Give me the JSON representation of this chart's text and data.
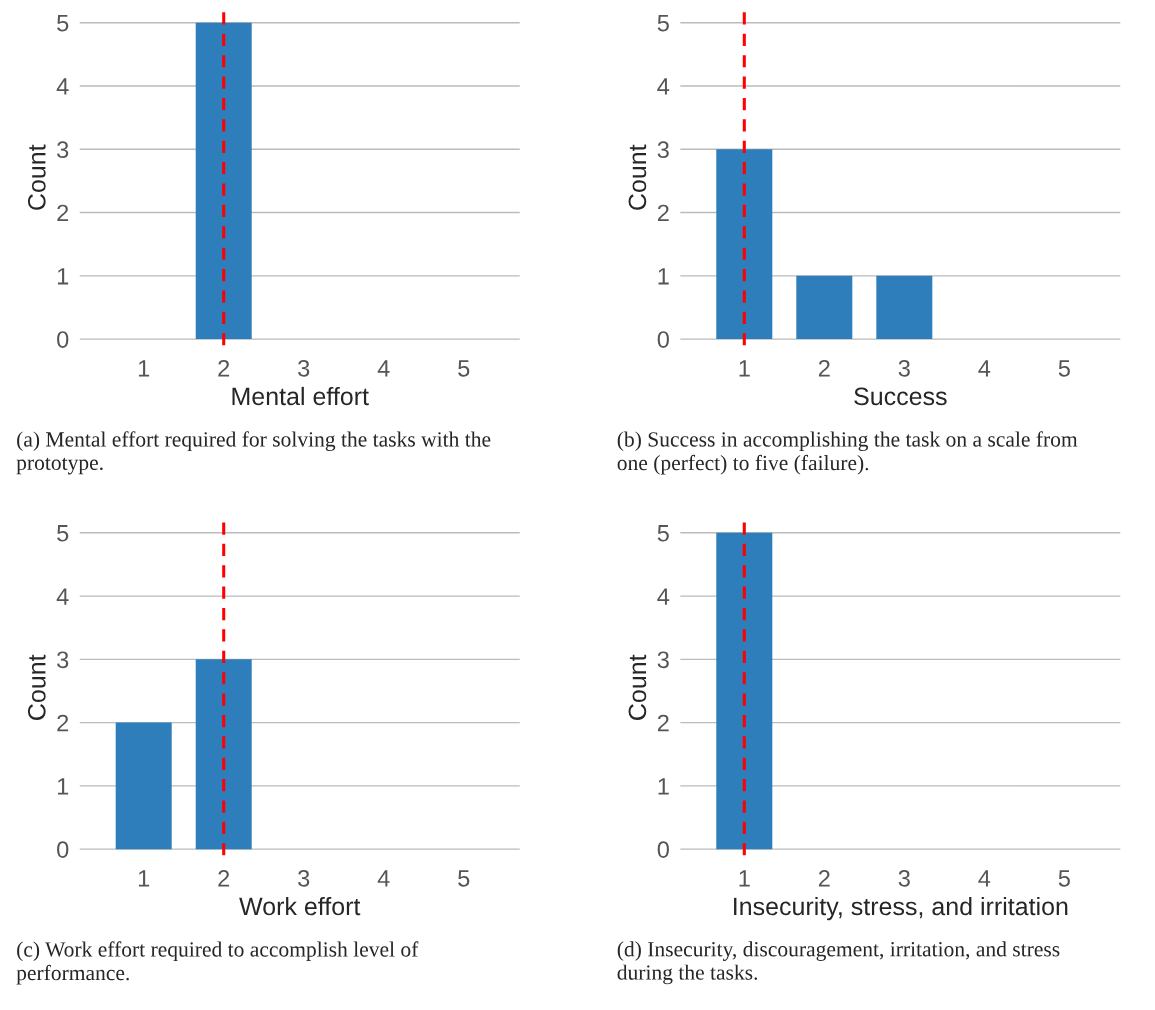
{
  "chart_data": [
    {
      "type": "bar",
      "xlabel": "Mental effort",
      "ylabel": "Count",
      "x": [
        1,
        2,
        3,
        4,
        5
      ],
      "values": [
        0,
        5,
        0,
        0,
        0
      ],
      "color": "#2e7ebc",
      "xlim": [
        0.2,
        5.7
      ],
      "ylim": [
        -0.1,
        5.2
      ],
      "xticks": [
        1,
        2,
        3,
        4,
        5
      ],
      "yticks": [
        0,
        1,
        2,
        3,
        4,
        5
      ],
      "grid": "y",
      "ref_lines": [
        {
          "axis": "x",
          "value": 2,
          "color": "#ff0000",
          "line_style": "dashed"
        }
      ],
      "annotations": [
        "(a) Mental effort required for solving the tasks with the prototype."
      ]
    },
    {
      "type": "bar",
      "xlabel": "Success",
      "ylabel": "Count",
      "x": [
        1,
        2,
        3,
        4,
        5
      ],
      "values": [
        3,
        1,
        1,
        0,
        0
      ],
      "color": "#2e7ebc",
      "xlim": [
        0.2,
        5.7
      ],
      "ylim": [
        -0.1,
        5.2
      ],
      "xticks": [
        1,
        2,
        3,
        4,
        5
      ],
      "yticks": [
        0,
        1,
        2,
        3,
        4,
        5
      ],
      "grid": "y",
      "ref_lines": [
        {
          "axis": "x",
          "value": 1,
          "color": "#ff0000",
          "line_style": "dashed"
        }
      ],
      "annotations": [
        "(b) Success in accomplishing the task on a scale from one (perfect) to five (failure)."
      ]
    },
    {
      "type": "bar",
      "xlabel": "Work effort",
      "ylabel": "Count",
      "x": [
        1,
        2,
        3,
        4,
        5
      ],
      "values": [
        2,
        3,
        0,
        0,
        0
      ],
      "color": "#2e7ebc",
      "xlim": [
        0.2,
        5.7
      ],
      "ylim": [
        -0.1,
        5.2
      ],
      "xticks": [
        1,
        2,
        3,
        4,
        5
      ],
      "yticks": [
        0,
        1,
        2,
        3,
        4,
        5
      ],
      "grid": "y",
      "ref_lines": [
        {
          "axis": "x",
          "value": 2,
          "color": "#ff0000",
          "line_style": "dashed"
        }
      ],
      "annotations": [
        "(c) Work effort required to accomplish level of performance."
      ]
    },
    {
      "type": "bar",
      "xlabel": "Insecurity, stress, and irritation",
      "ylabel": "Count",
      "x": [
        1,
        2,
        3,
        4,
        5
      ],
      "values": [
        5,
        0,
        0,
        0,
        0
      ],
      "color": "#2e7ebc",
      "xlim": [
        0.2,
        5.7
      ],
      "ylim": [
        -0.1,
        5.2
      ],
      "xticks": [
        1,
        2,
        3,
        4,
        5
      ],
      "yticks": [
        0,
        1,
        2,
        3,
        4,
        5
      ],
      "grid": "y",
      "ref_lines": [
        {
          "axis": "x",
          "value": 1,
          "color": "#ff0000",
          "line_style": "dashed"
        }
      ],
      "annotations": [
        "(d) Insecurity, discouragement, irritation, and stress during the tasks."
      ]
    }
  ]
}
